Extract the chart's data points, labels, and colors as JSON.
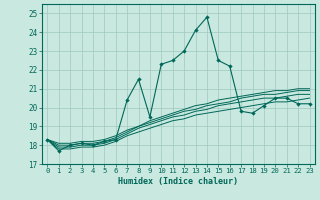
{
  "title": "",
  "xlabel": "Humidex (Indice chaleur)",
  "xlim": [
    -0.5,
    23.5
  ],
  "ylim": [
    17,
    25.5
  ],
  "yticks": [
    17,
    18,
    19,
    20,
    21,
    22,
    23,
    24,
    25
  ],
  "xticks": [
    0,
    1,
    2,
    3,
    4,
    5,
    6,
    7,
    8,
    9,
    10,
    11,
    12,
    13,
    14,
    15,
    16,
    17,
    18,
    19,
    20,
    21,
    22,
    23
  ],
  "bg_color": "#c8e8e0",
  "grid_color": "#a0c8c0",
  "line_color": "#006858",
  "series_main": [
    18.3,
    17.7,
    18.0,
    18.1,
    18.0,
    18.2,
    18.3,
    20.4,
    21.5,
    19.5,
    22.3,
    22.5,
    23.0,
    24.1,
    24.8,
    22.5,
    22.2,
    19.8,
    19.7,
    20.1,
    20.5,
    20.5,
    20.2,
    20.2
  ],
  "series_trend1": [
    18.3,
    18.1,
    18.1,
    18.2,
    18.2,
    18.3,
    18.5,
    18.8,
    19.0,
    19.3,
    19.5,
    19.7,
    19.9,
    20.1,
    20.2,
    20.4,
    20.5,
    20.6,
    20.7,
    20.8,
    20.9,
    20.9,
    21.0,
    21.0
  ],
  "series_trend2": [
    18.3,
    18.0,
    18.0,
    18.1,
    18.1,
    18.2,
    18.4,
    18.7,
    19.0,
    19.2,
    19.4,
    19.6,
    19.8,
    19.9,
    20.1,
    20.2,
    20.3,
    20.5,
    20.6,
    20.7,
    20.7,
    20.8,
    20.9,
    20.9
  ],
  "series_trend3": [
    18.3,
    17.9,
    17.9,
    18.0,
    18.0,
    18.1,
    18.3,
    18.6,
    18.9,
    19.1,
    19.3,
    19.5,
    19.6,
    19.8,
    19.9,
    20.1,
    20.2,
    20.3,
    20.4,
    20.5,
    20.5,
    20.6,
    20.7,
    20.7
  ],
  "series_trend4": [
    18.3,
    17.8,
    17.8,
    17.9,
    17.9,
    18.0,
    18.2,
    18.5,
    18.7,
    18.9,
    19.1,
    19.3,
    19.4,
    19.6,
    19.7,
    19.8,
    19.9,
    20.0,
    20.1,
    20.2,
    20.3,
    20.3,
    20.4,
    20.5
  ]
}
